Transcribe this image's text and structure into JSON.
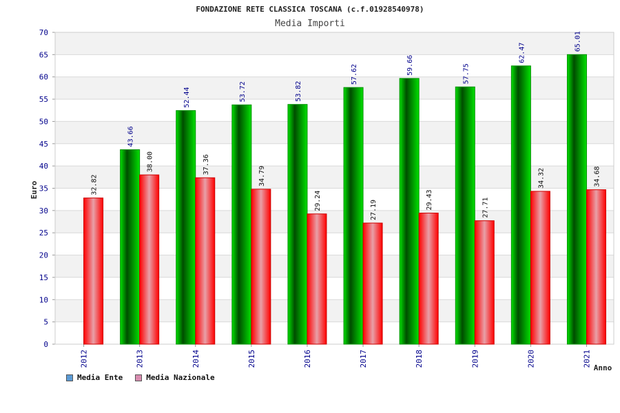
{
  "colors": {
    "ente_swatch": "#5b9bd5",
    "naz_swatch": "#d98cb0",
    "ente_bar": "#00c000",
    "naz_bar": "#ff2020",
    "band": "#f2f2f2",
    "grid": "#d9d9d9",
    "tick_text": "#00008b"
  },
  "chart_data": {
    "type": "bar",
    "title": "FONDAZIONE RETE CLASSICA TOSCANA (c.f.01928540978)",
    "subtitle": "Media Importi",
    "xlabel": "Anno",
    "ylabel": "Euro",
    "ylim": [
      0,
      70
    ],
    "yticks": [
      0,
      5,
      10,
      15,
      20,
      25,
      30,
      35,
      40,
      45,
      50,
      55,
      60,
      65,
      70
    ],
    "categories": [
      "2012",
      "2013",
      "2014",
      "2015",
      "2016",
      "2017",
      "2018",
      "2019",
      "2020",
      "2021"
    ],
    "series": [
      {
        "name": "Media Ente",
        "values": [
          null,
          43.66,
          52.44,
          53.72,
          53.82,
          57.62,
          59.66,
          57.75,
          62.47,
          65.01
        ],
        "labels": [
          null,
          "43.66",
          "52.44",
          "53.72",
          "53.82",
          "57.62",
          "59.66",
          "57.75",
          "62.47",
          "65.01"
        ]
      },
      {
        "name": "Media Nazionale",
        "values": [
          32.82,
          38.0,
          37.36,
          34.79,
          29.24,
          27.19,
          29.43,
          27.71,
          34.32,
          34.68
        ],
        "labels": [
          "32.82",
          "38.00",
          "37.36",
          "34.79",
          "29.24",
          "27.19",
          "29.43",
          "27.71",
          "34.32",
          "34.68"
        ]
      }
    ],
    "grid": true,
    "legend_position": "bottom-left"
  }
}
